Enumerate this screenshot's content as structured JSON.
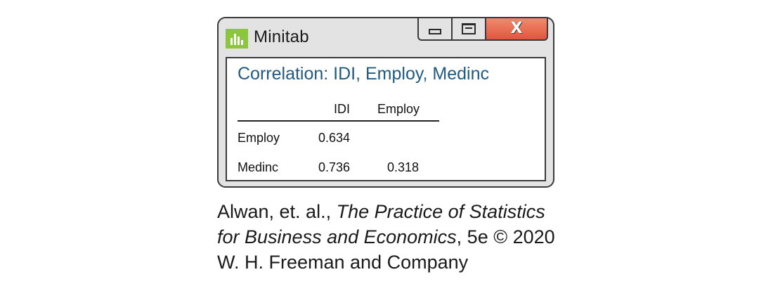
{
  "window": {
    "app_title": "Minitab",
    "app_icon": "minitab-bar-chart-icon",
    "controls": {
      "minimize": "minimize-icon",
      "maximize": "maximize-icon",
      "close_label": "X"
    },
    "colors": {
      "title_text": "#1f5a82",
      "icon_green": "#8cc63f",
      "close_red": "#e0563d"
    }
  },
  "output": {
    "title": "Correlation: IDI, Employ, Medinc",
    "columns": [
      "IDI",
      "Employ"
    ],
    "rows": [
      {
        "label": "Employ",
        "idi": "0.634",
        "employ": ""
      },
      {
        "label": "Medinc",
        "idi": "0.736",
        "employ": "0.318"
      }
    ]
  },
  "citation": {
    "line1_prefix": "Alwan, et. al., ",
    "line1_italic": "The Practice of Statistics",
    "line2_italic": "for Business and Economics",
    "line2_suffix": ", 5e © 2020",
    "line3": "W. H. Freeman and Company"
  }
}
